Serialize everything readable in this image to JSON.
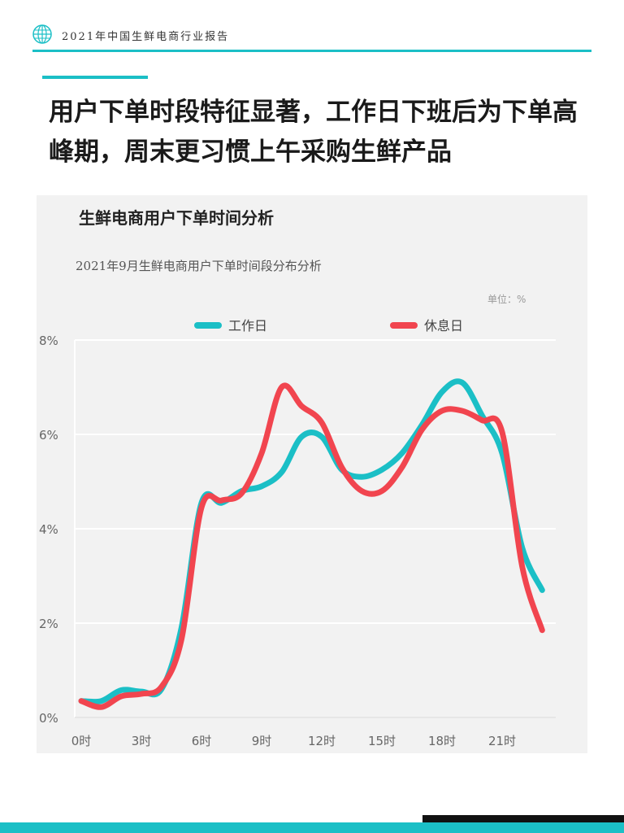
{
  "header": {
    "text": "2021年中国生鲜电商行业报告",
    "accent_color": "#1bbfc6"
  },
  "headline": "用户下单时段特征显著，工作日下班后为下单高峰期，周末更习惯上午采购生鲜产品",
  "panel": {
    "title": "生鲜电商用户下单时间分析",
    "subtitle": "2021年9月生鲜电商用户下单时间段分布分析",
    "unit": "单位：%"
  },
  "chart_data": {
    "type": "line",
    "x": [
      0,
      1,
      2,
      3,
      4,
      5,
      6,
      7,
      8,
      9,
      10,
      11,
      12,
      13,
      14,
      15,
      16,
      17,
      18,
      19,
      20,
      21,
      22,
      23
    ],
    "x_tick_values": [
      0,
      3,
      6,
      9,
      12,
      15,
      18,
      21
    ],
    "x_tick_labels": [
      "0时",
      "3时",
      "6时",
      "9时",
      "12时",
      "15时",
      "18时",
      "21时"
    ],
    "y_tick_values": [
      0,
      2,
      4,
      6,
      8
    ],
    "y_tick_labels": [
      "0%",
      "2%",
      "4%",
      "6%",
      "8%"
    ],
    "ylim": [
      0,
      8
    ],
    "xlim": [
      0,
      23
    ],
    "grid": true,
    "legend_position": "top",
    "series": [
      {
        "name": "工作日",
        "color": "#1bbfc6",
        "values": [
          0.35,
          0.35,
          0.58,
          0.55,
          0.6,
          1.9,
          4.55,
          4.55,
          4.8,
          4.9,
          5.2,
          5.95,
          5.95,
          5.25,
          5.1,
          5.25,
          5.6,
          6.2,
          6.9,
          7.1,
          6.4,
          5.6,
          3.6,
          2.7
        ]
      },
      {
        "name": "休息日",
        "color": "#f1454f",
        "values": [
          0.35,
          0.22,
          0.45,
          0.5,
          0.65,
          1.65,
          4.45,
          4.6,
          4.75,
          5.6,
          7.0,
          6.6,
          6.25,
          5.3,
          4.8,
          4.8,
          5.3,
          6.1,
          6.5,
          6.5,
          6.3,
          6.05,
          3.2,
          1.85
        ]
      }
    ]
  }
}
